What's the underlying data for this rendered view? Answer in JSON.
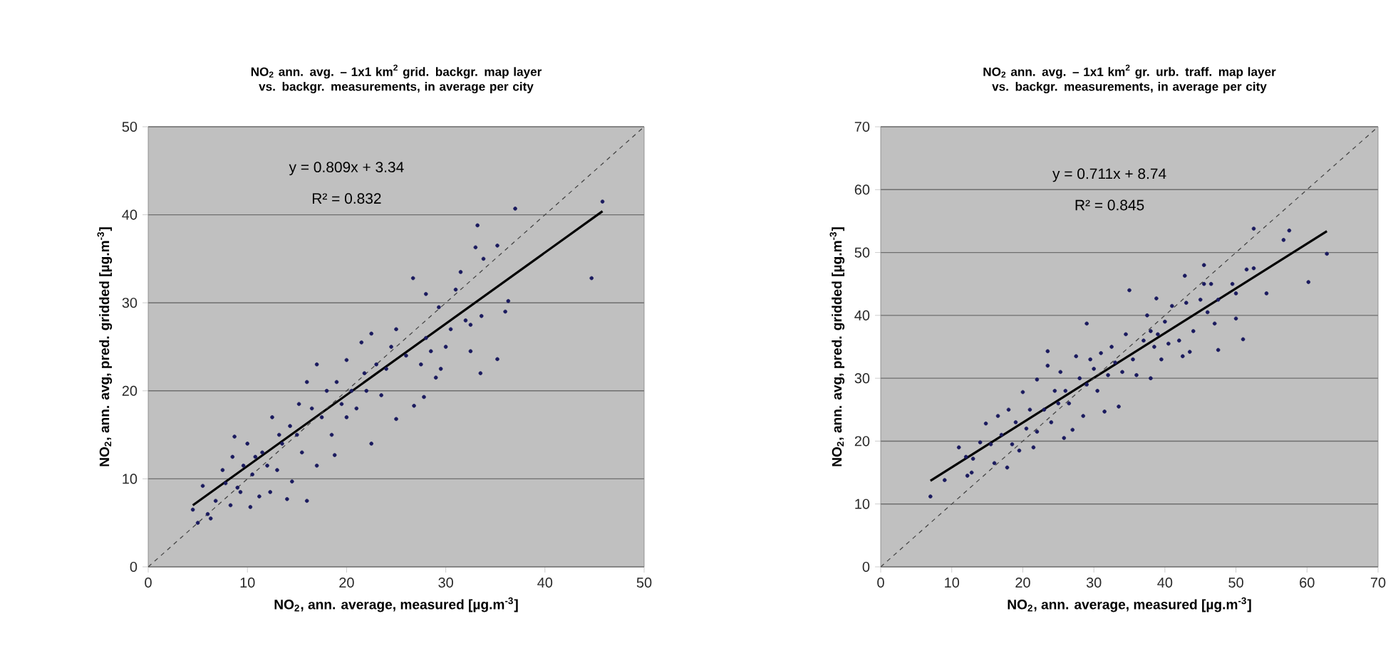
{
  "chart_data": [
    {
      "type": "scatter",
      "title": "NO$_{2}$ ann. avg. – 1x1 km$^{2}$ grid. backgr. map layer vs. backgr. measurements,  in average per city",
      "xlabel": "NO$_{2}$, ann. average, measured  [µg.m$^{-3}$]",
      "ylabel": "NO$_{2}$, ann. avg, pred. gridded  [µg.m$^{-3}$]",
      "xlim": [
        0,
        50
      ],
      "ylim": [
        0,
        50
      ],
      "xticks": [
        0,
        10,
        20,
        30,
        40,
        50
      ],
      "yticks": [
        0,
        10,
        20,
        30,
        40,
        50
      ],
      "grid": "y",
      "annotations": [
        "y = 0.809x + 3.34",
        "R² = 0.832"
      ],
      "series": [
        {
          "marker": "circle",
          "color": "#1a1a5e",
          "x": [
            4.5,
            5,
            5.5,
            6,
            6.3,
            6.8,
            7.5,
            7.8,
            8.3,
            8.5,
            8.7,
            9,
            9.3,
            9.6,
            10,
            10.3,
            10.5,
            10.8,
            11.2,
            11.5,
            12,
            12.3,
            12.5,
            13,
            13.2,
            13.5,
            14,
            14.3,
            14.5,
            15,
            15.2,
            15.5,
            16,
            16,
            16.5,
            17,
            17,
            17.5,
            18,
            18.5,
            18.8,
            19,
            19.5,
            20,
            20,
            20.5,
            21,
            21.5,
            21.8,
            22,
            22.5,
            22.5,
            23,
            23.5,
            24,
            24.5,
            25,
            25,
            26,
            26.7,
            26.8,
            27.5,
            27.8,
            28,
            28,
            28.5,
            29,
            29.3,
            29.5,
            30,
            30.5,
            31,
            31.5,
            32,
            32.5,
            32.5,
            33,
            33.2,
            33.5,
            33.6,
            33.8,
            35.2,
            35.2,
            36,
            36.3,
            37,
            44.7,
            45.8
          ],
          "values": [
            6.5,
            5,
            9.2,
            6,
            5.5,
            7.5,
            11,
            9.5,
            7,
            12.5,
            14.8,
            9,
            8.5,
            11.5,
            14,
            6.8,
            10.5,
            12.5,
            8,
            13,
            11.5,
            8.5,
            17,
            11,
            15,
            14,
            7.7,
            16,
            9.7,
            15,
            18.5,
            13,
            7.5,
            21,
            18,
            23,
            11.5,
            17,
            20,
            15,
            12.7,
            21,
            18.5,
            23.5,
            17,
            20,
            18,
            25.5,
            22,
            20,
            14,
            26.5,
            23,
            19.5,
            22.5,
            25,
            16.8,
            27,
            24,
            32.8,
            18.3,
            23,
            19.3,
            31,
            26,
            24.5,
            21.5,
            29.5,
            22.5,
            25,
            27,
            31.5,
            33.5,
            28,
            24.5,
            27.5,
            36.3,
            38.8,
            22,
            28.5,
            35,
            36.5,
            23.6,
            29,
            30.2,
            40.7,
            32.8,
            41.5
          ]
        },
        {
          "type": "line",
          "line_style": "solid",
          "color": "#000000",
          "x": [
            4.5,
            45.8
          ],
          "values": [
            7.0,
            40.4
          ]
        },
        {
          "type": "line",
          "line_style": "dashed",
          "color": "#404040",
          "x": [
            0,
            50
          ],
          "values": [
            0,
            50
          ]
        }
      ]
    },
    {
      "type": "scatter",
      "title": "NO$_{2}$ ann. avg. – 1x1 km$^{2}$ gr. urb. traff. map layer vs. backgr. measurements,  in average per city",
      "xlabel": "NO$_{2}$, ann. average, measured  [µg.m$^{-3}$]",
      "ylabel": "NO$_{2}$, ann. avg, pred. gridded  [µg.m$^{-3}$]",
      "xlim": [
        0,
        70
      ],
      "ylim": [
        0,
        70
      ],
      "xticks": [
        0,
        10,
        20,
        30,
        40,
        50,
        60,
        70
      ],
      "yticks": [
        0,
        10,
        20,
        30,
        40,
        50,
        60,
        70
      ],
      "grid": "y",
      "annotations": [
        "y = 0.711x + 8.74",
        "R² = 0.845"
      ],
      "series": [
        {
          "marker": "circle",
          "color": "#1a1a5e",
          "x": [
            7,
            9,
            11,
            12,
            12.2,
            12.8,
            13,
            14,
            14.8,
            15.5,
            16,
            16.5,
            17,
            17.8,
            18,
            18.5,
            19,
            19.5,
            20,
            20.5,
            21,
            21.5,
            22,
            22,
            23,
            23.5,
            23.5,
            24,
            24.5,
            25,
            25.3,
            25.8,
            26,
            26.5,
            27,
            27.5,
            28,
            28.5,
            29,
            29,
            29.5,
            30,
            30.5,
            31,
            31.5,
            32,
            32.5,
            33,
            33.5,
            34,
            34.5,
            35,
            35.5,
            36,
            37,
            37.5,
            38,
            38,
            38.5,
            38.8,
            39,
            39.5,
            40,
            40.5,
            41,
            42,
            42.5,
            42.8,
            43,
            43.5,
            44,
            45,
            45.5,
            45.5,
            46,
            46.5,
            47,
            47.5,
            47.5,
            49.5,
            50,
            50,
            51,
            51.5,
            52.5,
            52.5,
            54.3,
            56.7,
            57.5,
            60.2,
            62.8
          ],
          "values": [
            11.2,
            13.8,
            19,
            17.5,
            14.5,
            15,
            17.2,
            19.8,
            22.8,
            19.5,
            16.5,
            24,
            21,
            15.8,
            25,
            19.5,
            23,
            18.5,
            27.8,
            22,
            25,
            19,
            29.8,
            21.5,
            25,
            34.3,
            32,
            23,
            28,
            26,
            31,
            20.5,
            28,
            26,
            21.8,
            33.5,
            30,
            24,
            38.7,
            29,
            33,
            31.5,
            28,
            34,
            24.7,
            30.5,
            35,
            32.5,
            25.5,
            31,
            37,
            44,
            33,
            30.5,
            36,
            40,
            30,
            37.5,
            35,
            42.7,
            37,
            33,
            39,
            35.5,
            41.5,
            36,
            33.5,
            46.3,
            42,
            34.2,
            37.5,
            42.5,
            48,
            45,
            40.5,
            45,
            38.7,
            34.5,
            42.5,
            45,
            43.5,
            39.5,
            36.2,
            47.3,
            47.5,
            53.8,
            43.5,
            52,
            53.5,
            45.3,
            49.8
          ]
        },
        {
          "type": "line",
          "line_style": "solid",
          "color": "#000000",
          "x": [
            7,
            62.8
          ],
          "values": [
            13.7,
            53.4
          ]
        },
        {
          "type": "line",
          "line_style": "dashed",
          "color": "#404040",
          "x": [
            0,
            70
          ],
          "values": [
            0,
            70
          ]
        }
      ]
    }
  ]
}
